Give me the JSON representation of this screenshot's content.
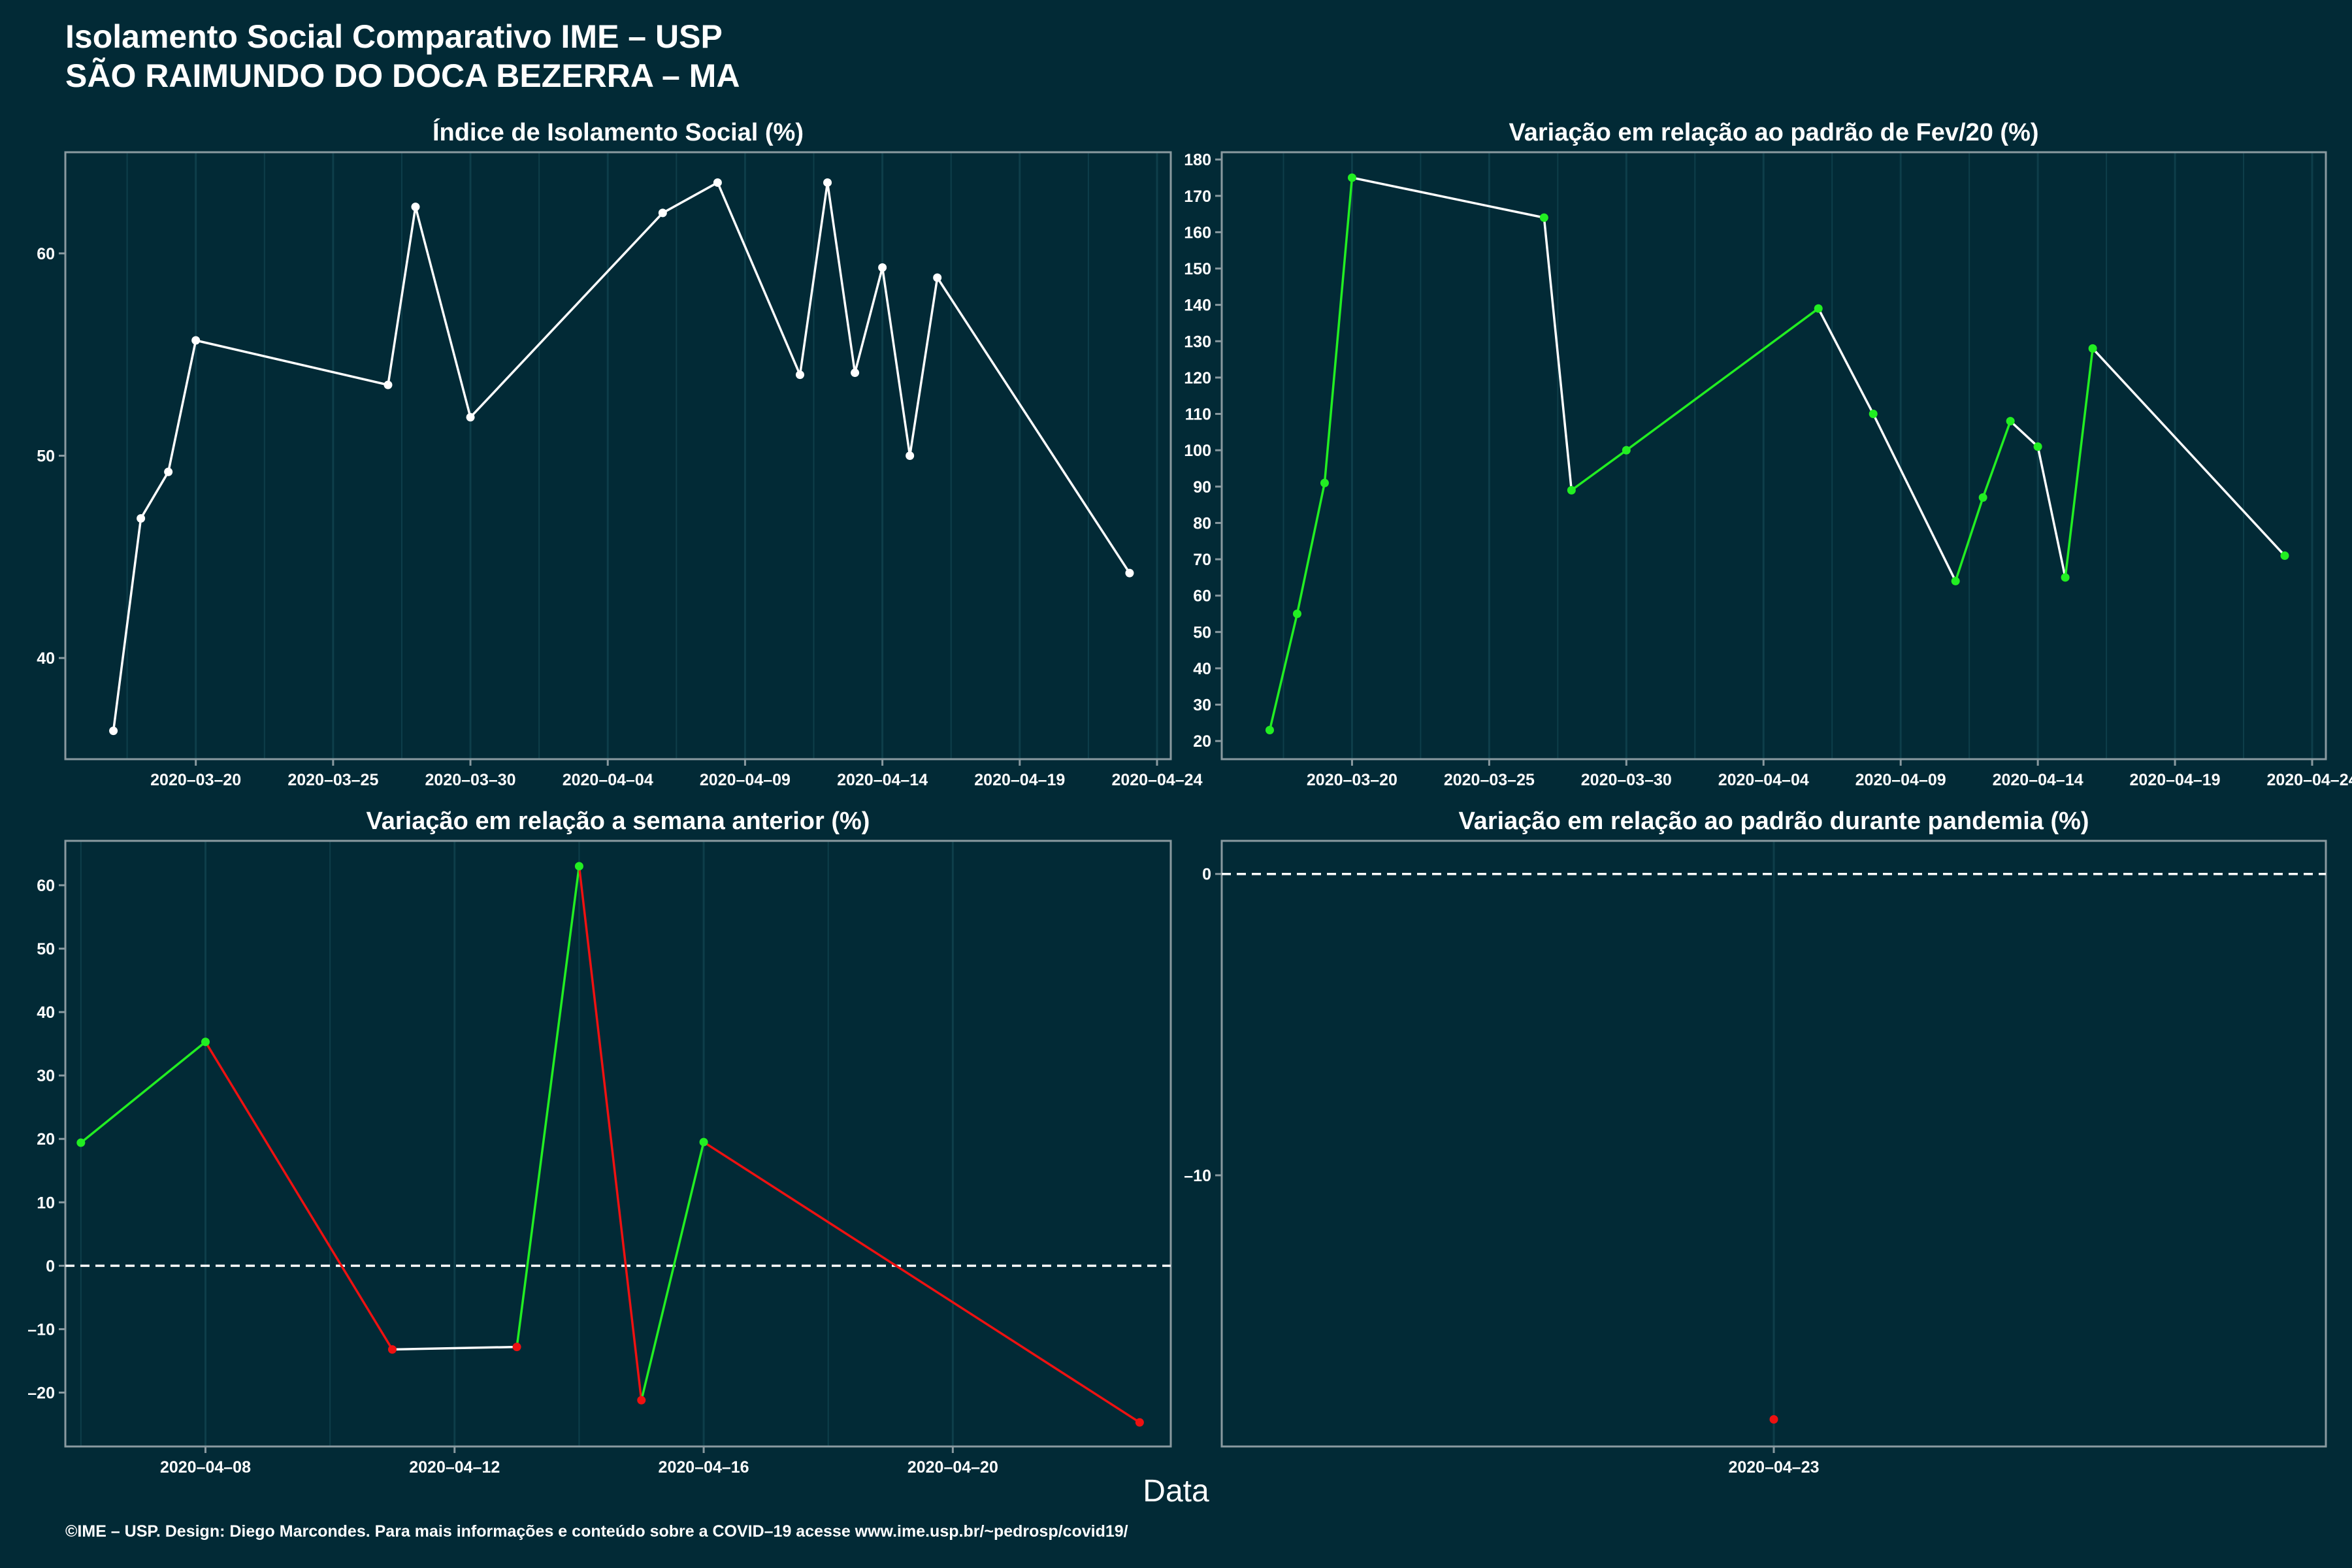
{
  "header": {
    "title_line1": "Isolamento Social Comparativo IME – USP",
    "title_line2": "SÃO RAIMUNDO DO DOCA BEZERRA – MA"
  },
  "xlabel": "Data",
  "footer": "©IME – USP. Design: Diego Marcondes. Para mais informações e conteúdo sobre a COVID–19 acesse www.ime.usp.br/~pedrosp/covid19/",
  "colors": {
    "background": "#022a36",
    "line_default": "#ffffff",
    "increase": "#22ee22",
    "decrease": "#ee1111",
    "axis": "#8a9aa0",
    "grid": "#0e3e4a"
  },
  "chart_data": [
    {
      "id": "isolation-index",
      "type": "line",
      "title": "Índice de Isolamento Social (%)",
      "x_axis": "date",
      "xlim": [
        "2020-03-15T06:00",
        "2020-04-24T12:00"
      ],
      "xticks": [
        "2020-03-20",
        "2020-03-25",
        "2020-03-30",
        "2020-04-04",
        "2020-04-09",
        "2020-04-14",
        "2020-04-19",
        "2020-04-24"
      ],
      "xtick_labels": [
        "2020–03–20",
        "2020–03–25",
        "2020–03–30",
        "2020–04–04",
        "2020–04–09",
        "2020–04–14",
        "2020–04–19",
        "2020–04–24"
      ],
      "ylim": [
        35,
        65
      ],
      "yticks": [
        40,
        50,
        60
      ],
      "ytick_labels": [
        "40",
        "50",
        "60"
      ],
      "color_mode": "white",
      "x": [
        "2020-03-17",
        "2020-03-18",
        "2020-03-19",
        "2020-03-20",
        "2020-03-27",
        "2020-03-28",
        "2020-03-30",
        "2020-04-06",
        "2020-04-08",
        "2020-04-11",
        "2020-04-12",
        "2020-04-13",
        "2020-04-14",
        "2020-04-15",
        "2020-04-16",
        "2020-04-23"
      ],
      "y": [
        36.4,
        46.9,
        49.2,
        55.7,
        53.5,
        62.3,
        51.9,
        62.0,
        63.5,
        54.0,
        63.5,
        54.1,
        59.3,
        50.0,
        58.8,
        44.2
      ]
    },
    {
      "id": "variation-feb",
      "type": "line",
      "title": "Variação em relação ao padrão de Fev/20 (%)",
      "x_axis": "date",
      "xlim": [
        "2020-03-15T06:00",
        "2020-04-24T12:00"
      ],
      "xticks": [
        "2020-03-20",
        "2020-03-25",
        "2020-03-30",
        "2020-04-04",
        "2020-04-09",
        "2020-04-14",
        "2020-04-19",
        "2020-04-24"
      ],
      "xtick_labels": [
        "2020–03–20",
        "2020–03–25",
        "2020–03–30",
        "2020–04–04",
        "2020–04–09",
        "2020–04–14",
        "2020–04–19",
        "2020–04–24"
      ],
      "ylim": [
        15,
        182
      ],
      "yticks": [
        20,
        30,
        40,
        50,
        60,
        70,
        80,
        90,
        100,
        110,
        120,
        130,
        140,
        150,
        160,
        170,
        180
      ],
      "ytick_labels": [
        "20",
        "30",
        "40",
        "50",
        "60",
        "70",
        "80",
        "90",
        "100",
        "110",
        "120",
        "130",
        "140",
        "150",
        "160",
        "170",
        "180"
      ],
      "color_mode": "updown",
      "x": [
        "2020-03-17",
        "2020-03-18",
        "2020-03-19",
        "2020-03-20",
        "2020-03-27",
        "2020-03-28",
        "2020-03-30",
        "2020-04-06",
        "2020-04-08",
        "2020-04-11",
        "2020-04-12",
        "2020-04-13",
        "2020-04-14",
        "2020-04-15",
        "2020-04-16",
        "2020-04-23"
      ],
      "y": [
        23,
        55,
        91,
        175,
        164,
        89,
        100,
        139,
        110,
        64,
        87,
        108,
        101,
        65,
        128,
        71
      ]
    },
    {
      "id": "variation-week",
      "type": "line",
      "title": "Variação em relação a semana anterior (%)",
      "x_axis": "date",
      "xlim": [
        "2020-04-05T18:00",
        "2020-04-23T12:00"
      ],
      "xticks": [
        "2020-04-08",
        "2020-04-12",
        "2020-04-16",
        "2020-04-20"
      ],
      "xtick_labels": [
        "2020–04–08",
        "2020–04–12",
        "2020–04–16",
        "2020–04–20"
      ],
      "ylim": [
        -28.5,
        67
      ],
      "yticks": [
        -20,
        -10,
        0,
        10,
        20,
        30,
        40,
        50,
        60
      ],
      "ytick_labels": [
        "–20",
        "–10",
        "0",
        "10",
        "20",
        "30",
        "40",
        "50",
        "60"
      ],
      "hline": 0,
      "color_mode": "sign",
      "x": [
        "2020-04-06",
        "2020-04-08",
        "2020-04-11",
        "2020-04-13",
        "2020-04-14",
        "2020-04-15",
        "2020-04-16",
        "2020-04-23"
      ],
      "y": [
        19.4,
        35.3,
        -13.2,
        -12.8,
        63.0,
        -21.2,
        19.5,
        -24.7
      ]
    },
    {
      "id": "variation-pandemic",
      "type": "scatter",
      "title": "Variação em relação ao padrão durante pandemia (%)",
      "x_axis": "date",
      "xlim": [
        "2020-04-22T12:00",
        "2020-04-23T12:00"
      ],
      "xticks": [
        "2020-04-23"
      ],
      "xtick_labels": [
        "2020–04–23"
      ],
      "ylim": [
        -19,
        1.1
      ],
      "yticks": [
        -10,
        0
      ],
      "ytick_labels": [
        "–10",
        "0"
      ],
      "hline": 0,
      "color_mode": "sign",
      "x": [
        "2020-04-23"
      ],
      "y": [
        -18.1
      ]
    }
  ]
}
